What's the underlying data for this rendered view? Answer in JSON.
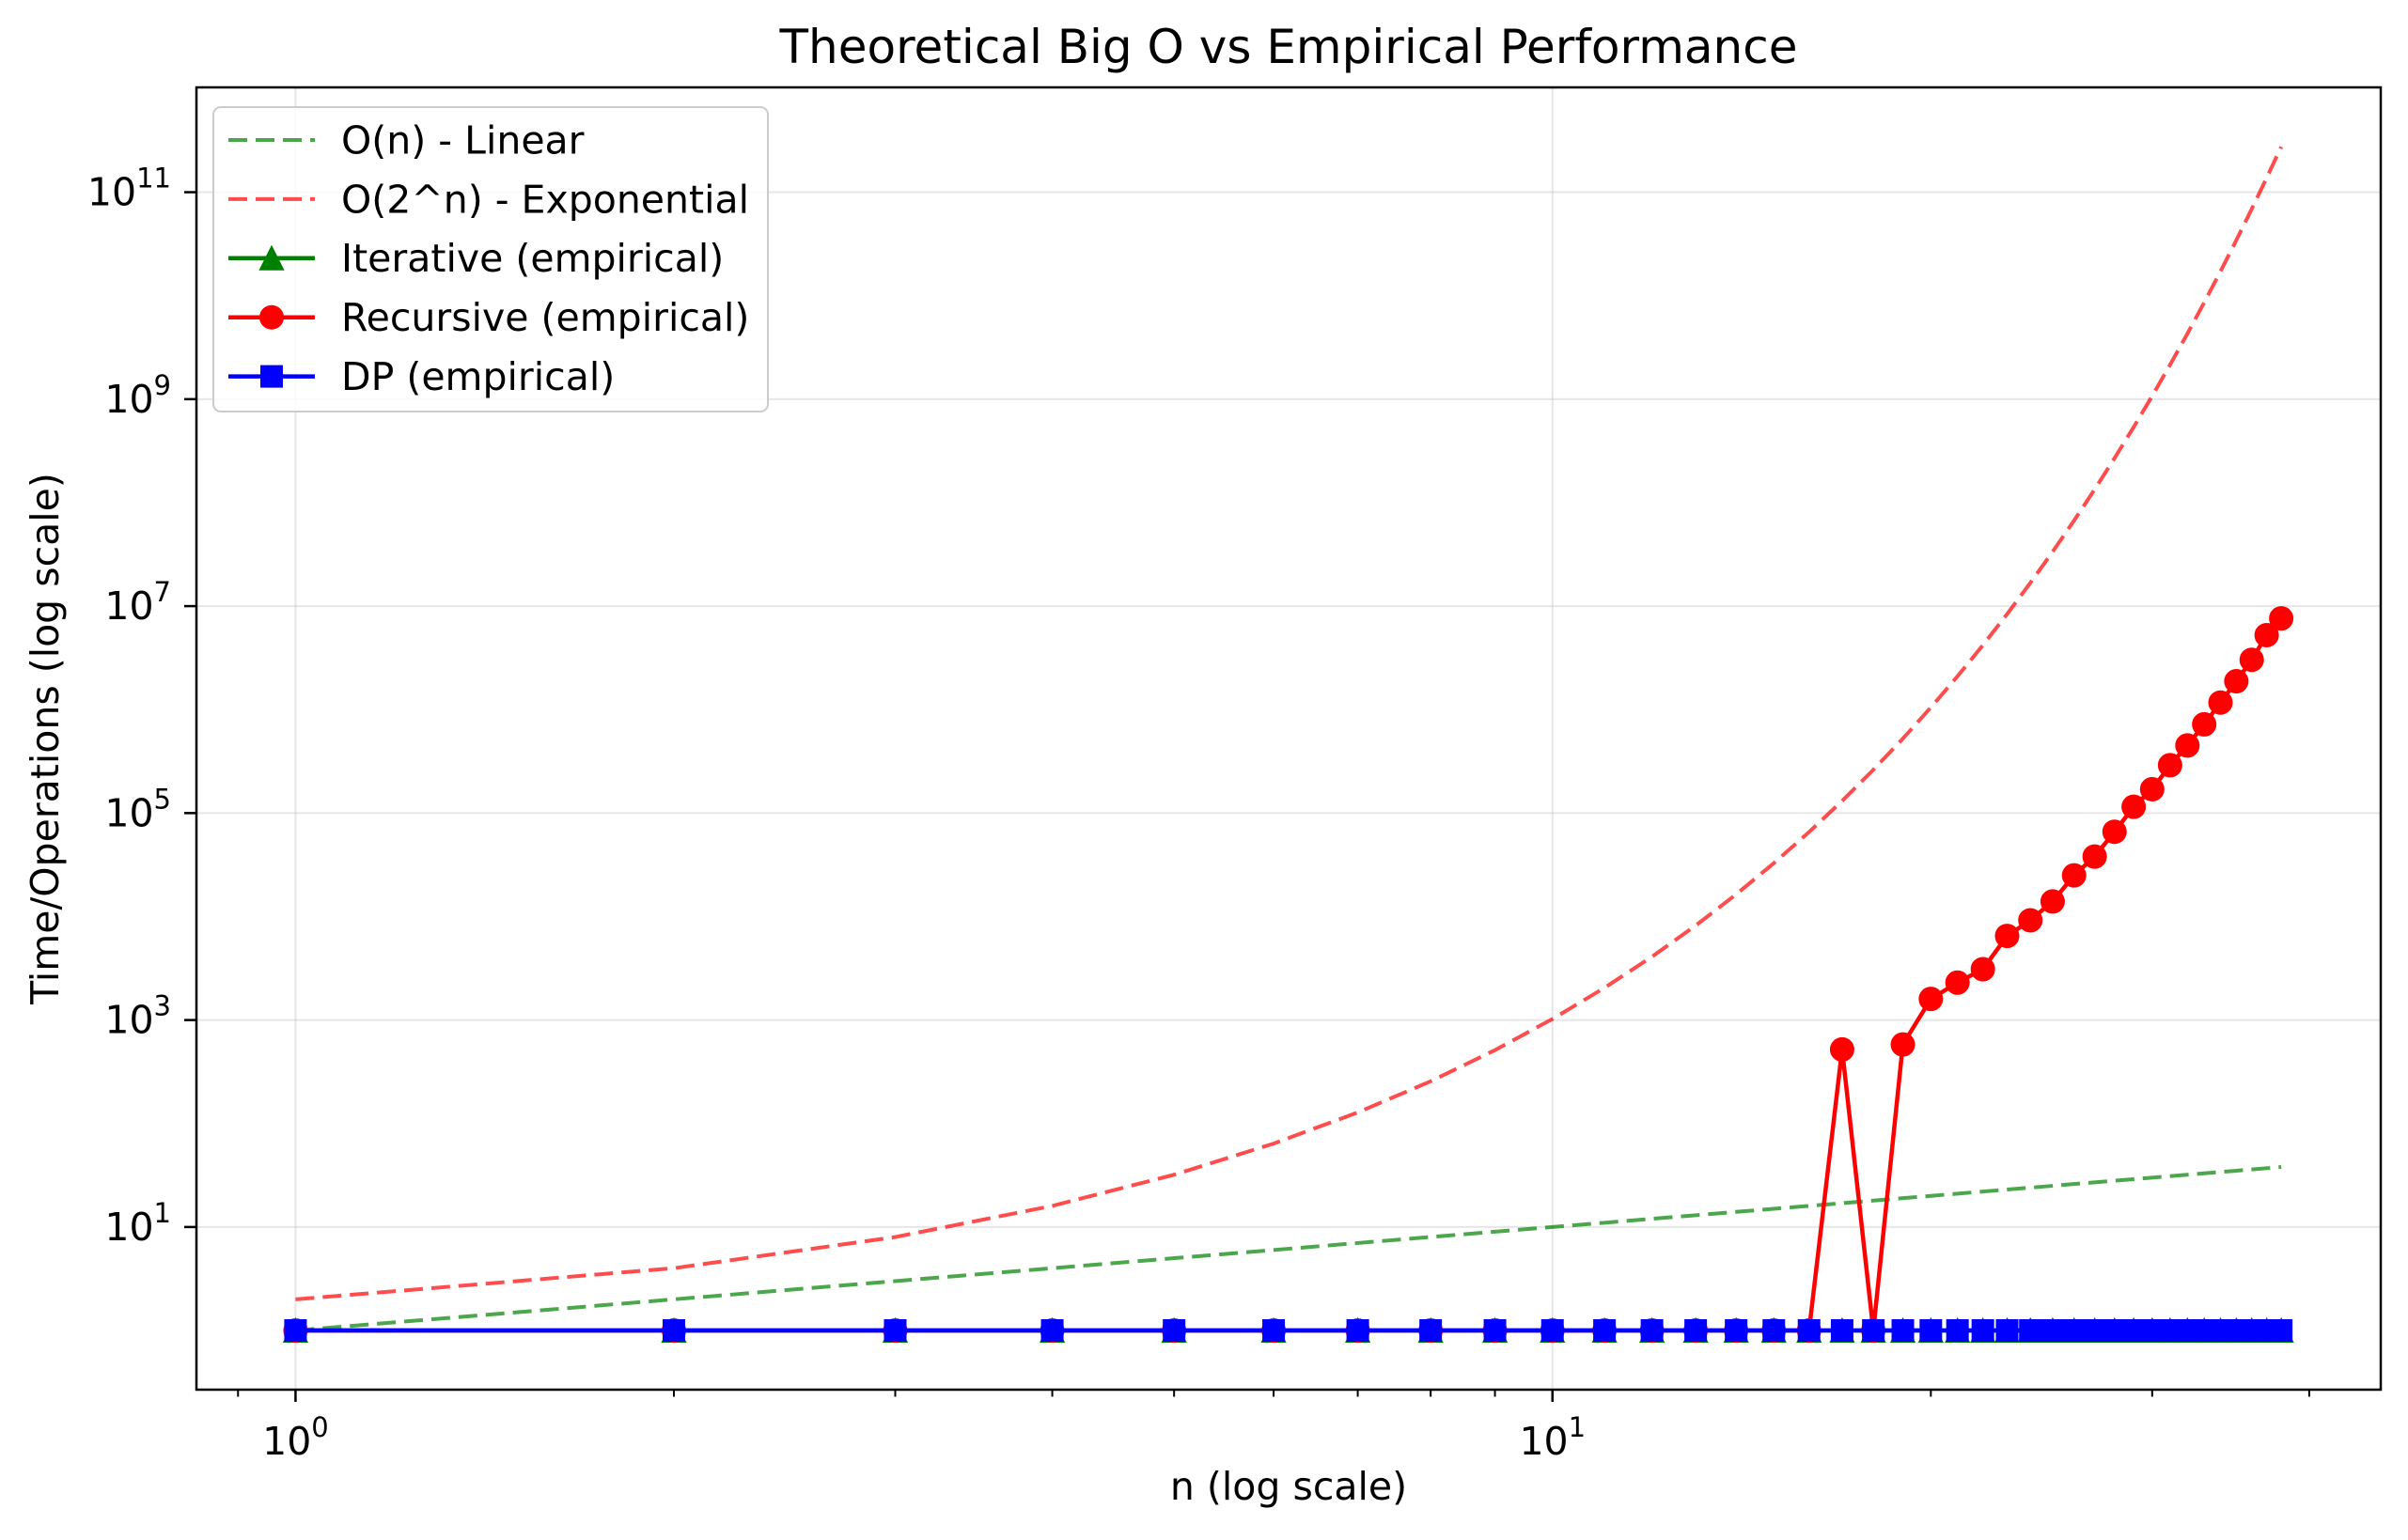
{
  "chart_data": {
    "type": "line",
    "title": "Theoretical Big O vs Empirical Performance",
    "xlabel": "n (log scale)",
    "ylabel": "Time/Operations (log scale)",
    "x_scale": "log",
    "y_scale": "log",
    "xlim": [
      0.834,
      45.6
    ],
    "ylim": [
      0.268,
      1030000000000.0
    ],
    "grid": true,
    "legend_position": "upper left",
    "x_ticks": [
      {
        "value": 1,
        "base": "10",
        "exp": "0"
      },
      {
        "value": 10,
        "base": "10",
        "exp": "1"
      }
    ],
    "y_ticks": [
      {
        "value": 10,
        "base": "10",
        "exp": "1"
      },
      {
        "value": 1000,
        "base": "10",
        "exp": "3"
      },
      {
        "value": 100000,
        "base": "10",
        "exp": "5"
      },
      {
        "value": 10000000,
        "base": "10",
        "exp": "7"
      },
      {
        "value": 1000000000,
        "base": "10",
        "exp": "9"
      },
      {
        "value": 100000000000,
        "base": "10",
        "exp": "11"
      }
    ],
    "x": [
      1,
      2,
      3,
      4,
      5,
      6,
      7,
      8,
      9,
      10,
      11,
      12,
      13,
      14,
      15,
      16,
      17,
      18,
      19,
      20,
      21,
      22,
      23,
      24,
      25,
      26,
      27,
      28,
      29,
      30,
      31,
      32,
      33,
      34,
      35,
      36,
      37,
      38
    ],
    "series": [
      {
        "name": "O(n) - Linear",
        "color": "#008000",
        "linestyle": "dashed",
        "marker": null,
        "values": [
          1,
          2,
          3,
          4,
          5,
          6,
          7,
          8,
          9,
          10,
          11,
          12,
          13,
          14,
          15,
          16,
          17,
          18,
          19,
          20,
          21,
          22,
          23,
          24,
          25,
          26,
          27,
          28,
          29,
          30,
          31,
          32,
          33,
          34,
          35,
          36,
          37,
          38
        ]
      },
      {
        "name": "O(2^n) - Exponential",
        "color": "#ff0000",
        "linestyle": "dashed",
        "marker": null,
        "values": [
          2,
          4,
          8,
          16,
          32,
          64,
          128,
          256,
          512,
          1024,
          2048,
          4096,
          8192,
          16384,
          32768,
          65536,
          131072,
          262144,
          524288,
          1048576,
          2097152,
          4194304,
          8388608,
          16777216,
          33554432,
          67108864,
          134217728,
          268435456,
          536870912,
          1073741824,
          2147483648,
          4294967296,
          8589934592,
          17179869184,
          34359738368,
          68719476736,
          137438953472,
          274877906944
        ]
      },
      {
        "name": "Iterative (empirical)",
        "color": "#008000",
        "linestyle": "solid",
        "marker": "triangle",
        "values": [
          1,
          1,
          1,
          1,
          1,
          1,
          1,
          1,
          1,
          1,
          1,
          1,
          1,
          1,
          1,
          1,
          1,
          1,
          1,
          1,
          1,
          1,
          1,
          1,
          1,
          1,
          1,
          1,
          1,
          1,
          1,
          1,
          1,
          1,
          1,
          1,
          1,
          1
        ]
      },
      {
        "name": "Recursive (empirical)",
        "color": "#ff0000",
        "linestyle": "solid",
        "marker": "circle",
        "values": [
          1,
          1,
          1,
          1,
          1,
          1,
          1,
          1,
          1,
          1,
          1,
          1,
          1,
          1,
          1,
          1,
          520,
          1,
          580,
          1600,
          2300,
          3100,
          6500,
          9200,
          14000,
          25000,
          38000,
          66000,
          115000,
          170000,
          290000,
          450000,
          720000,
          1170000,
          1880000,
          3030000,
          5240000,
          7610000
        ]
      },
      {
        "name": "DP (empirical)",
        "color": "#0000ff",
        "linestyle": "solid",
        "marker": "square",
        "values": [
          1,
          1,
          1,
          1,
          1,
          1,
          1,
          1,
          1,
          1,
          1,
          1,
          1,
          1,
          1,
          1,
          1,
          1,
          1,
          1,
          1,
          1,
          1,
          1,
          1,
          1,
          1,
          1,
          1,
          1,
          1,
          1,
          1,
          1,
          1,
          1,
          1,
          1
        ]
      }
    ]
  }
}
